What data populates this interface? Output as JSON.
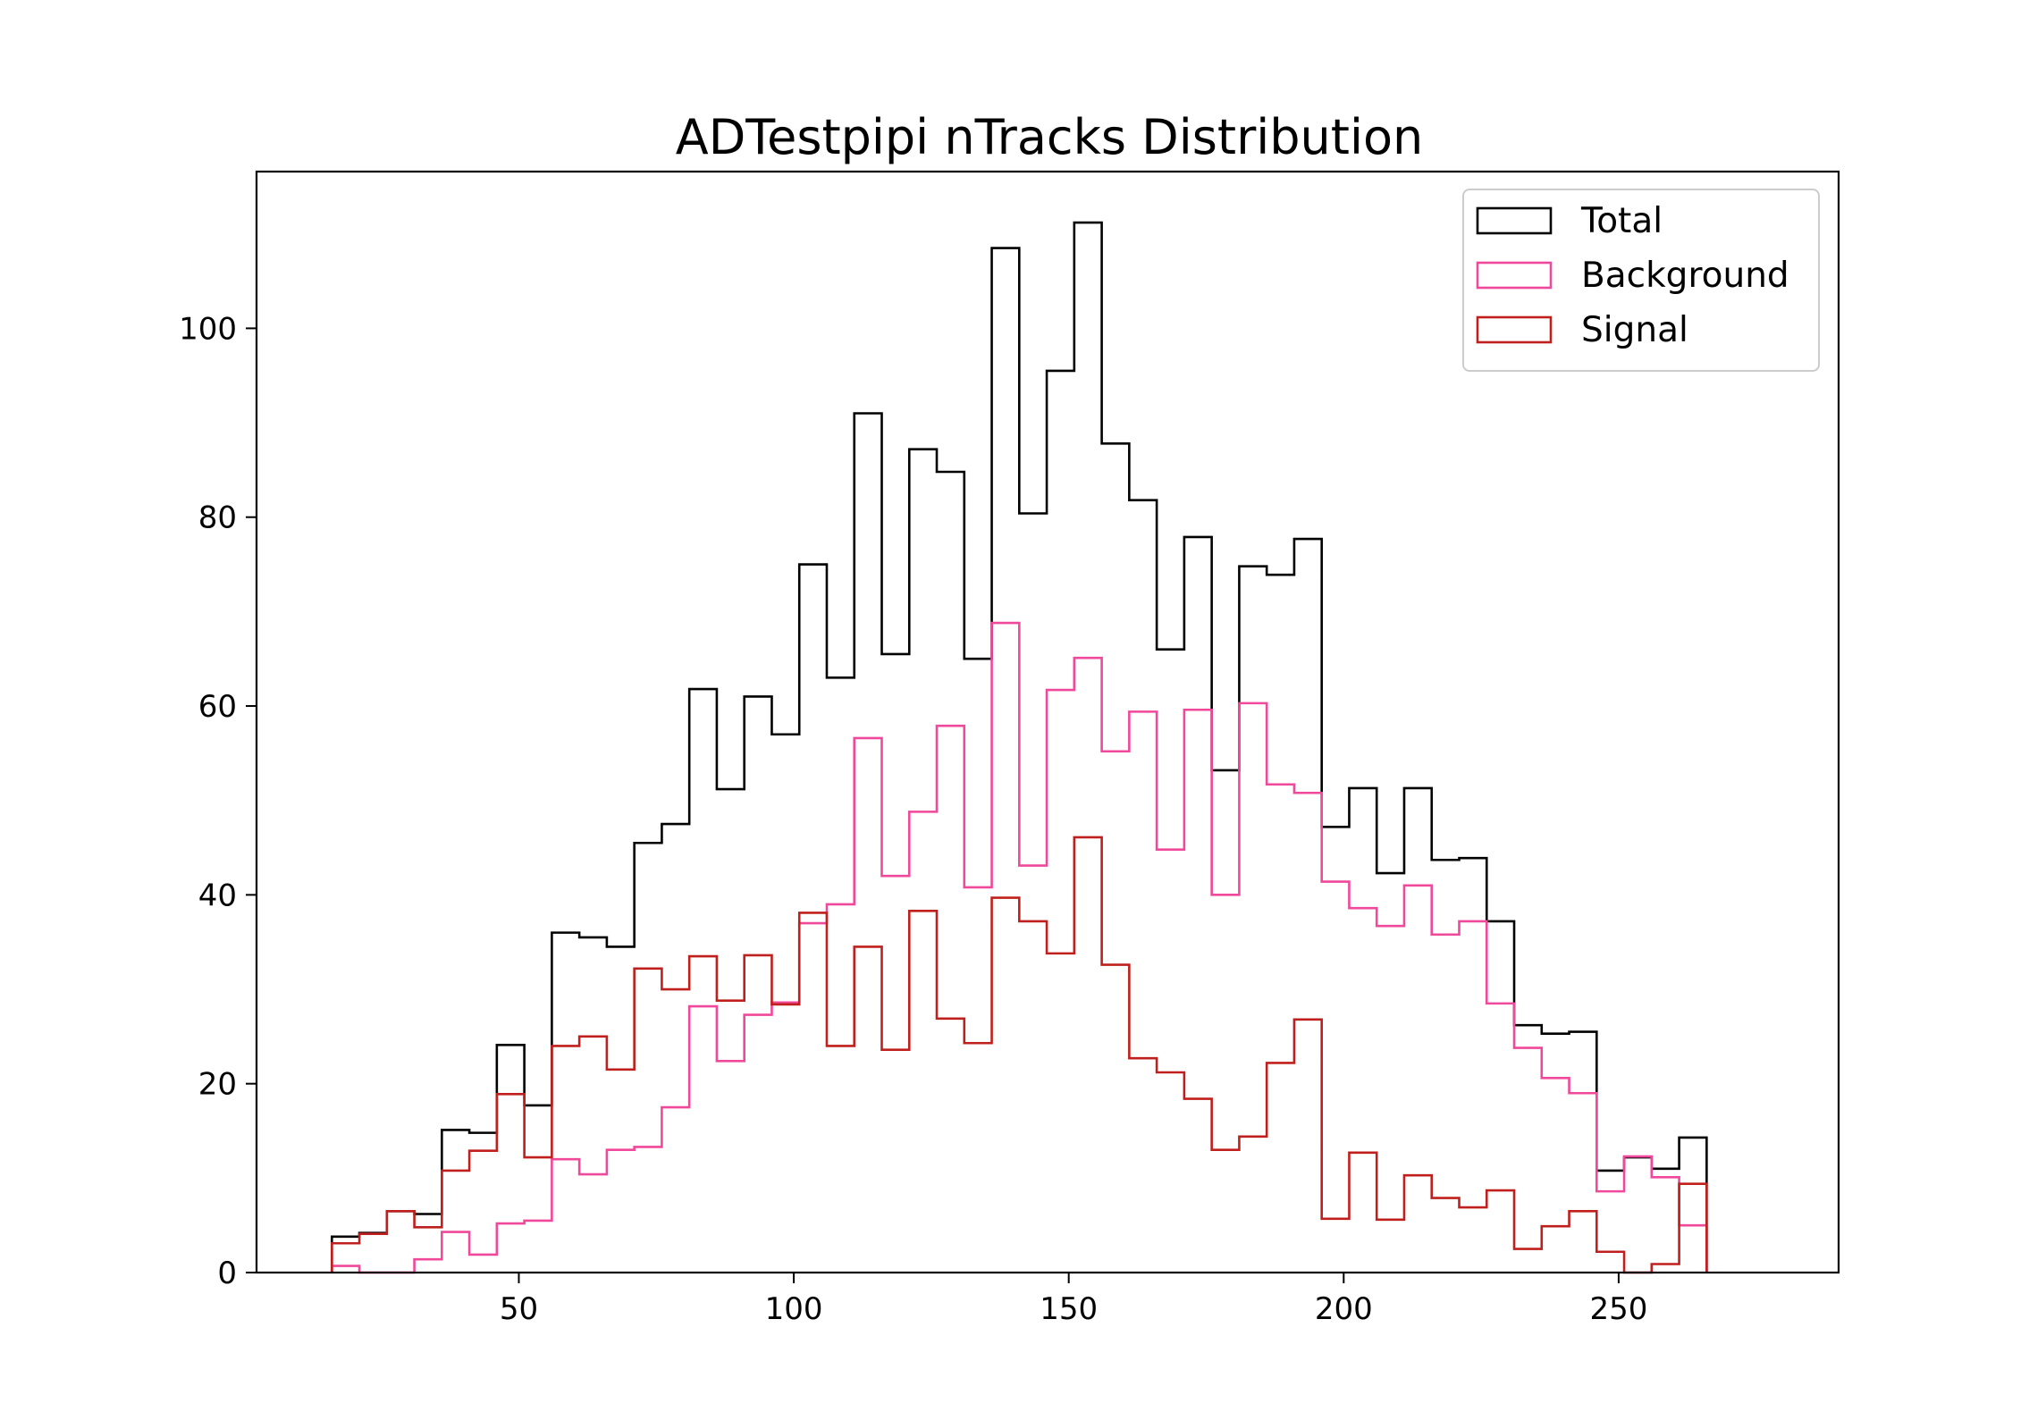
{
  "chart_data": {
    "type": "histogram",
    "title": "ADTestpipi nTracks Distribution",
    "xlabel": "",
    "ylabel": "",
    "xlim": [
      2.3,
      290
    ],
    "ylim": [
      0,
      116.6
    ],
    "xticks": [
      50,
      100,
      150,
      200,
      250
    ],
    "yticks": [
      0,
      20,
      40,
      60,
      80,
      100
    ],
    "bin_start": 16,
    "bin_width": 5.0,
    "grid": false,
    "legend_position": "top-right",
    "series": [
      {
        "name": "Total",
        "color": "#000000",
        "values": [
          3.8,
          4.2,
          6.5,
          6.2,
          15.1,
          14.8,
          24.1,
          17.7,
          36.0,
          35.5,
          34.5,
          45.5,
          47.5,
          61.8,
          51.2,
          61.0,
          57.0,
          75.0,
          63.0,
          91.0,
          65.5,
          87.2,
          84.8,
          65.0,
          108.5,
          80.4,
          95.5,
          111.2,
          87.8,
          81.8,
          66.0,
          77.9,
          53.2,
          74.8,
          73.9,
          77.7,
          47.2,
          51.3,
          42.3,
          51.3,
          43.7,
          43.9,
          37.2,
          26.2,
          25.3,
          25.5,
          10.8,
          12.2,
          11.0,
          14.3
        ]
      },
      {
        "name": "Background",
        "color": "#f0489a",
        "values": [
          0.7,
          0,
          0,
          1.4,
          4.3,
          1.9,
          5.2,
          5.5,
          12.0,
          10.4,
          13.0,
          13.3,
          17.5,
          28.2,
          22.4,
          27.3,
          28.6,
          37.0,
          39.0,
          56.6,
          42.0,
          48.8,
          57.9,
          40.8,
          68.8,
          43.1,
          61.7,
          65.1,
          55.2,
          59.4,
          44.8,
          59.6,
          40.0,
          60.3,
          51.7,
          50.8,
          41.4,
          38.6,
          36.7,
          41.0,
          35.8,
          37.2,
          28.5,
          23.8,
          20.6,
          19.0,
          8.6,
          12.3,
          10.1,
          5.0
        ]
      },
      {
        "name": "Signal",
        "color": "#c0201d",
        "values": [
          3.1,
          4.1,
          6.5,
          4.8,
          10.8,
          12.9,
          18.9,
          12.2,
          24.0,
          25.0,
          21.5,
          32.2,
          30.0,
          33.5,
          28.8,
          33.6,
          28.4,
          38.1,
          24.0,
          34.5,
          23.6,
          38.3,
          26.9,
          24.3,
          39.7,
          37.2,
          33.8,
          46.1,
          32.6,
          22.7,
          21.2,
          18.4,
          13.0,
          14.4,
          22.2,
          26.8,
          5.7,
          12.7,
          5.6,
          10.3,
          7.9,
          6.9,
          8.7,
          2.5,
          4.9,
          6.5,
          2.2,
          0,
          0.9,
          9.4
        ]
      }
    ]
  }
}
